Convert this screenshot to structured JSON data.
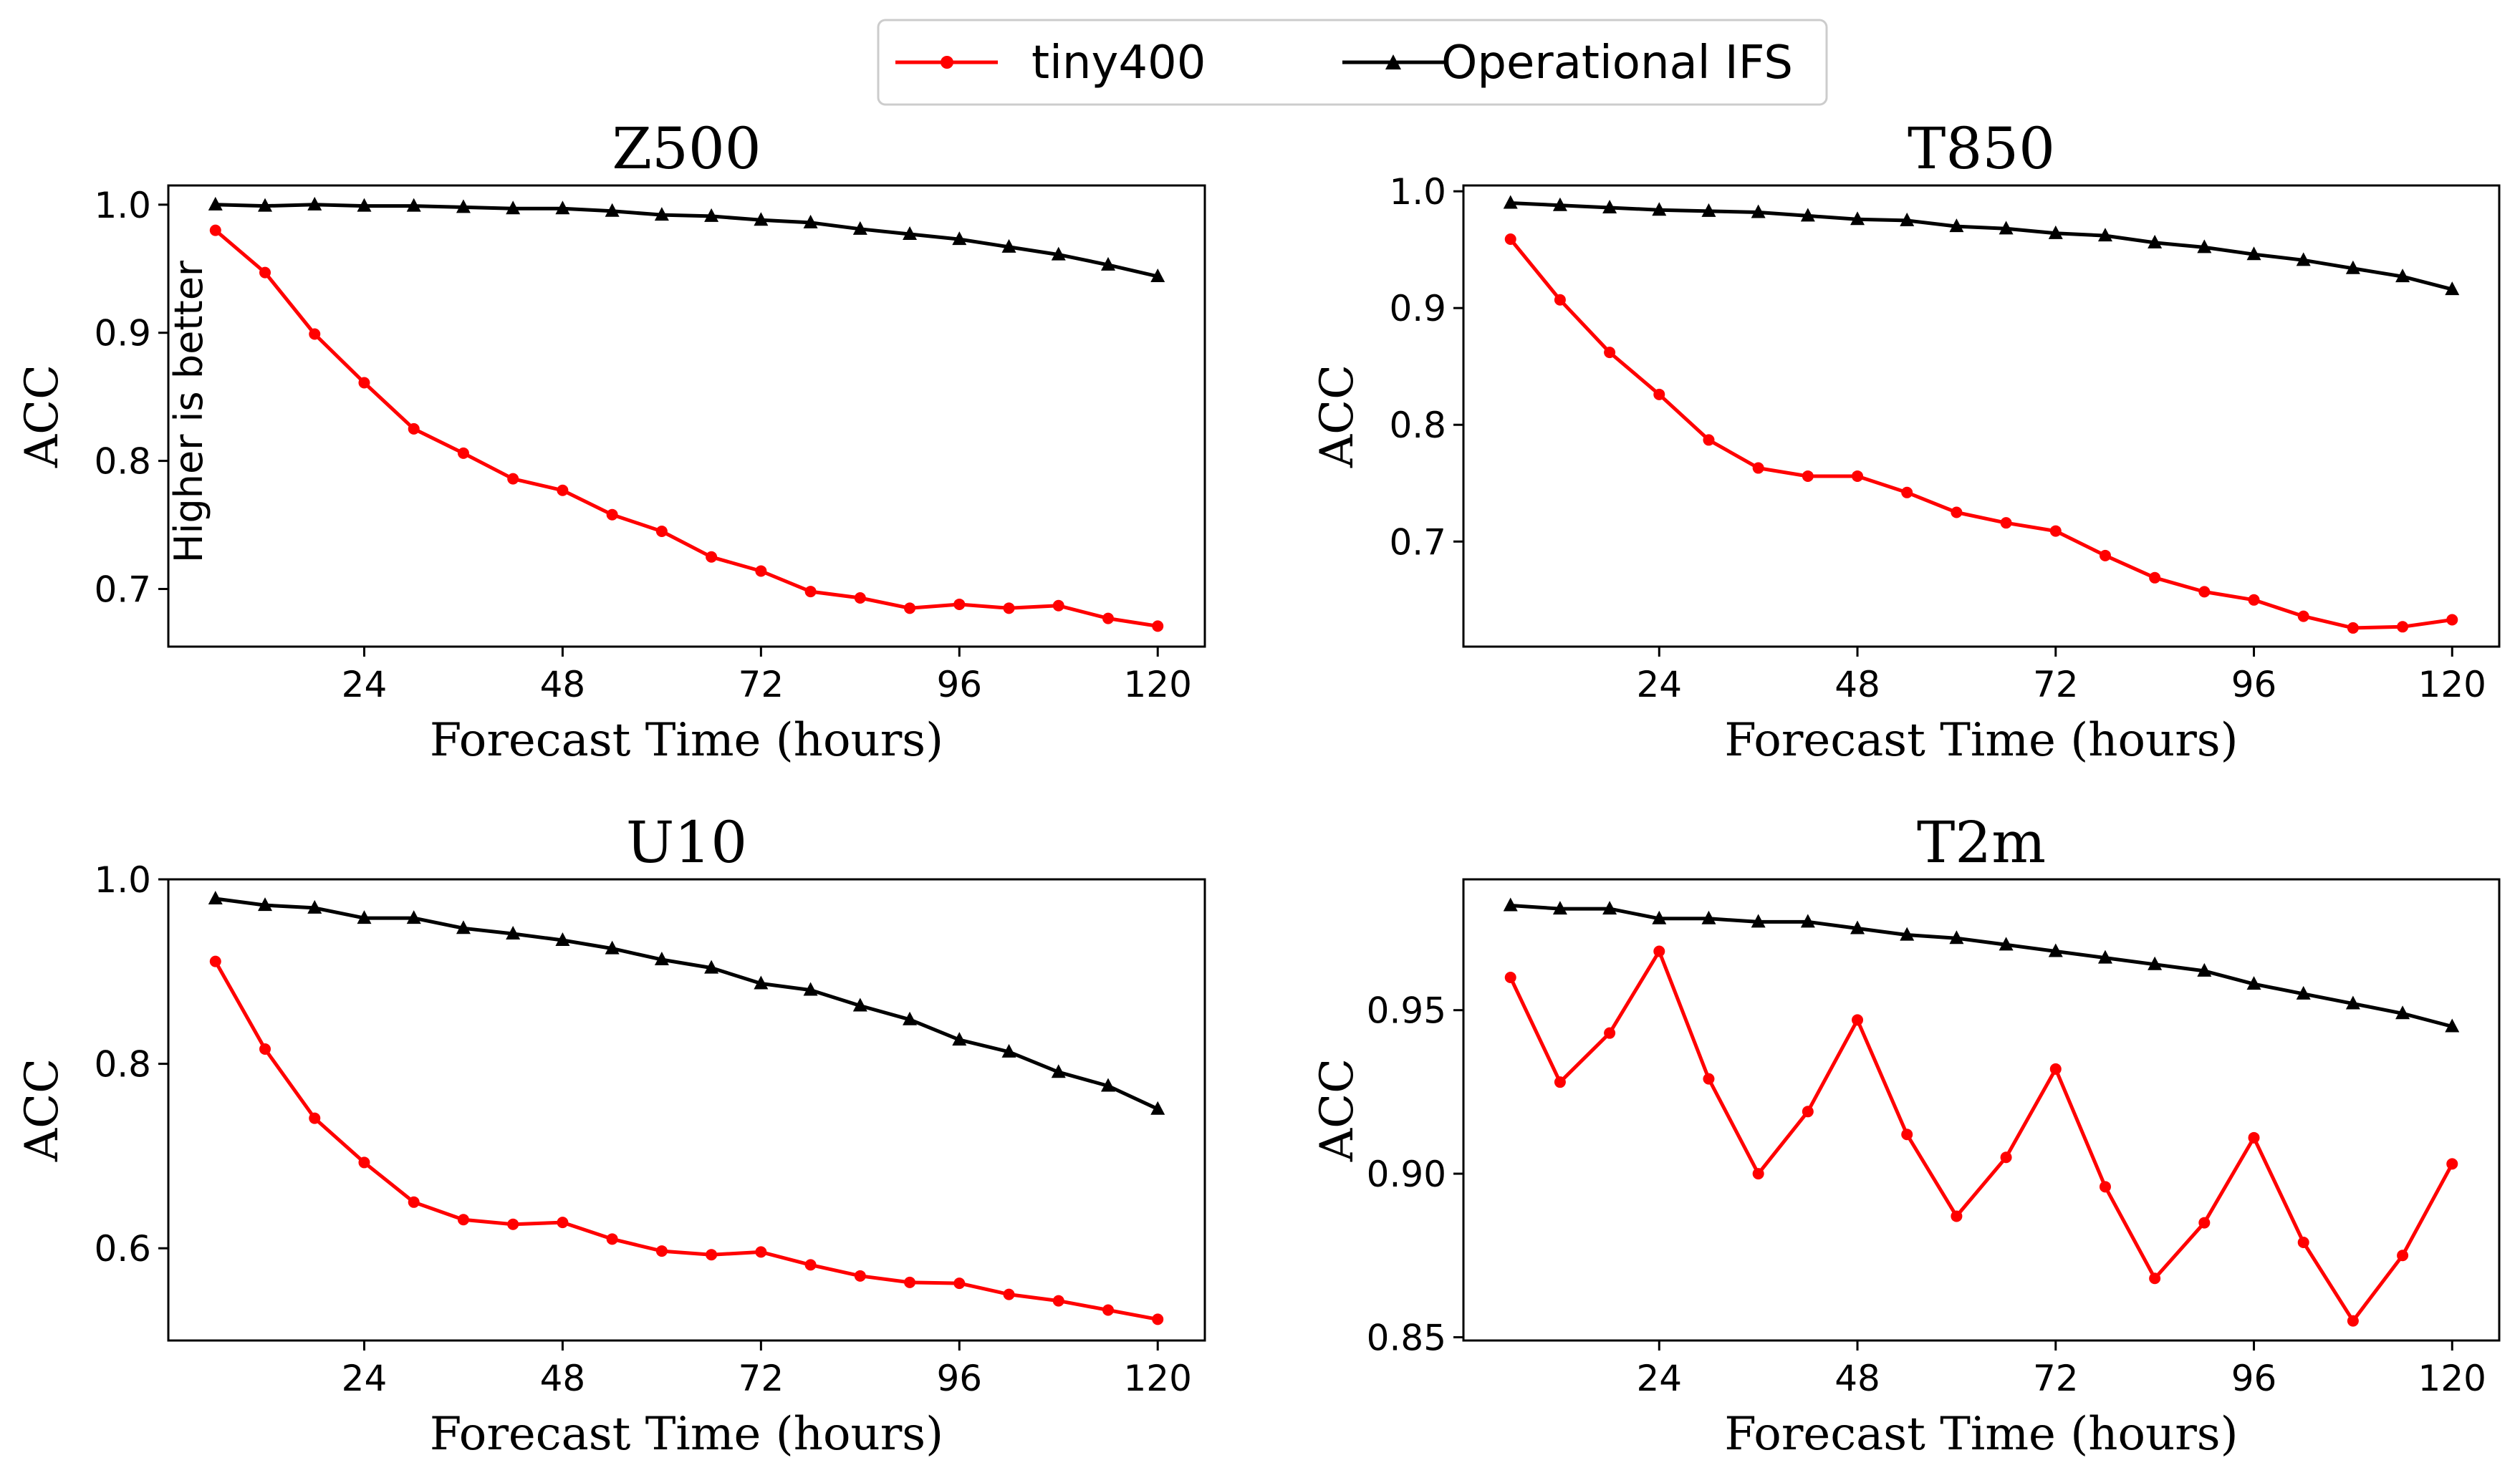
{
  "chart_data": {
    "type": "line",
    "legend": {
      "placement": "top-center",
      "entries": [
        {
          "name": "tiny400",
          "color": "#ff0000",
          "marker": "circle"
        },
        {
          "name": "Operational IFS",
          "color": "#000000",
          "marker": "triangle"
        }
      ]
    },
    "x": [
      6,
      12,
      18,
      24,
      30,
      36,
      42,
      48,
      54,
      60,
      66,
      72,
      78,
      84,
      90,
      96,
      102,
      108,
      114,
      120
    ],
    "xticks": [
      24,
      48,
      72,
      96,
      120
    ],
    "xlabel": "Forecast Time (hours)",
    "ylabel": "ACC",
    "annotation": "Higher is better",
    "panels": [
      {
        "title": "Z500",
        "ylim": [
          0.655,
          1.015
        ],
        "yticks": [
          0.7,
          0.8,
          0.9,
          1.0
        ],
        "ytick_labels": [
          "0.7",
          "0.8",
          "0.9",
          "1.0"
        ],
        "series": [
          {
            "name": "tiny400",
            "values": [
              0.98,
              0.947,
              0.899,
              0.861,
              0.825,
              0.806,
              0.786,
              0.777,
              0.758,
              0.745,
              0.725,
              0.714,
              0.698,
              0.693,
              0.685,
              0.688,
              0.685,
              0.687,
              0.677,
              0.671
            ]
          },
          {
            "name": "Operational IFS",
            "values": [
              1.0,
              0.999,
              1.0,
              0.999,
              0.999,
              0.998,
              0.997,
              0.997,
              0.995,
              0.992,
              0.991,
              0.988,
              0.986,
              0.981,
              0.977,
              0.973,
              0.967,
              0.961,
              0.953,
              0.944
            ]
          }
        ]
      },
      {
        "title": "T850",
        "ylim": [
          0.61,
          1.005
        ],
        "yticks": [
          0.7,
          0.8,
          0.9,
          1.0
        ],
        "ytick_labels": [
          "0.7",
          "0.8",
          "0.9",
          "1.0"
        ],
        "series": [
          {
            "name": "tiny400",
            "values": [
              0.959,
              0.907,
              0.862,
              0.826,
              0.787,
              0.763,
              0.756,
              0.756,
              0.742,
              0.725,
              0.716,
              0.709,
              0.688,
              0.669,
              0.657,
              0.65,
              0.636,
              0.626,
              0.627,
              0.633
            ]
          },
          {
            "name": "Operational IFS",
            "values": [
              0.99,
              0.988,
              0.986,
              0.984,
              0.983,
              0.982,
              0.979,
              0.976,
              0.975,
              0.97,
              0.968,
              0.964,
              0.962,
              0.956,
              0.952,
              0.946,
              0.941,
              0.934,
              0.927,
              0.916
            ]
          }
        ]
      },
      {
        "title": "U10",
        "ylim": [
          0.5,
          1.0
        ],
        "yticks": [
          0.6,
          0.8,
          1.0
        ],
        "ytick_labels": [
          "0.6",
          "0.8",
          "1.0"
        ],
        "series": [
          {
            "name": "tiny400",
            "values": [
              0.911,
              0.816,
              0.741,
              0.693,
              0.65,
              0.631,
              0.626,
              0.628,
              0.61,
              0.597,
              0.593,
              0.596,
              0.582,
              0.57,
              0.563,
              0.562,
              0.55,
              0.543,
              0.533,
              0.523
            ]
          },
          {
            "name": "Operational IFS",
            "values": [
              0.979,
              0.972,
              0.969,
              0.958,
              0.958,
              0.947,
              0.941,
              0.934,
              0.925,
              0.913,
              0.904,
              0.887,
              0.88,
              0.863,
              0.848,
              0.826,
              0.813,
              0.791,
              0.776,
              0.751
            ]
          }
        ]
      },
      {
        "title": "T2m",
        "ylim": [
          0.849,
          0.99
        ],
        "yticks": [
          0.85,
          0.9,
          0.95
        ],
        "ytick_labels": [
          "0.85",
          "0.90",
          "0.95"
        ],
        "series": [
          {
            "name": "tiny400",
            "values": [
              0.96,
              0.928,
              0.943,
              0.968,
              0.929,
              0.9,
              0.919,
              0.947,
              0.912,
              0.887,
              0.905,
              0.932,
              0.896,
              0.868,
              0.885,
              0.911,
              0.879,
              0.855,
              0.875,
              0.903
            ]
          },
          {
            "name": "Operational IFS",
            "values": [
              0.982,
              0.981,
              0.981,
              0.978,
              0.978,
              0.977,
              0.977,
              0.975,
              0.973,
              0.972,
              0.97,
              0.968,
              0.966,
              0.964,
              0.962,
              0.958,
              0.955,
              0.952,
              0.949,
              0.945
            ]
          }
        ]
      }
    ]
  }
}
